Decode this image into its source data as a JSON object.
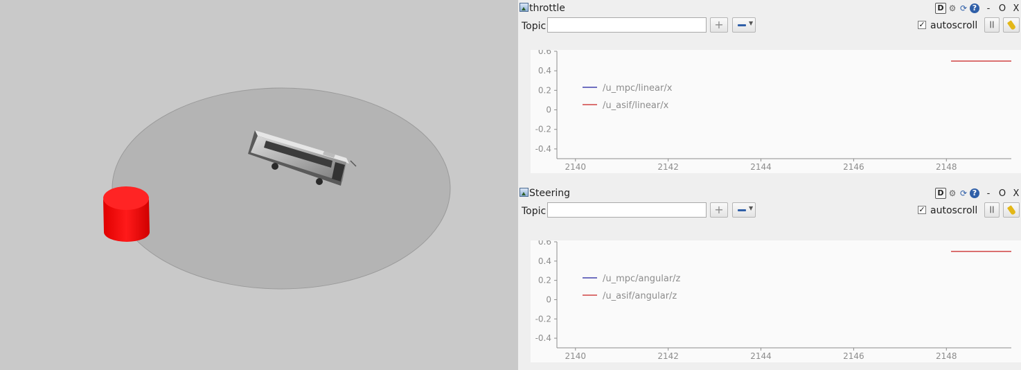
{
  "viewport": {
    "name": "gazebo-3d-view",
    "colors": {
      "background": "#c9c9c9",
      "ground": "#b4b4b4",
      "obstacle": "#ff0000",
      "obstacle_top": "#ff3a3a"
    }
  },
  "panels": [
    {
      "id": "throttle",
      "title": "throttle",
      "toolbar": {
        "d_label": "D",
        "minimize": "-",
        "float": "O",
        "close": "X"
      },
      "topic_label": "Topic",
      "topic_value": "",
      "add_label": "+",
      "autoscroll_label": "autoscroll",
      "autoscroll_checked": "✓",
      "pause_label": "||",
      "chart_data": {
        "type": "line",
        "xlim": [
          2139.6,
          2149.4
        ],
        "ylim": [
          -0.5,
          0.6
        ],
        "x_ticks": [
          2140,
          2142,
          2144,
          2146,
          2148
        ],
        "x_tick_labels": [
          "2140",
          "2142",
          "2144",
          "2146",
          "2148"
        ],
        "y_ticks": [
          0.6,
          0.4,
          0.2,
          0,
          -0.2,
          -0.4
        ],
        "y_tick_labels": [
          "0.6",
          "0.4",
          "0.2",
          "0",
          "-0.2",
          "-0.4"
        ],
        "series": [
          {
            "name": "/u_mpc/linear/x",
            "color": "#1c1c9e",
            "points": []
          },
          {
            "name": "/u_asif/linear/x",
            "color": "#c81e1e",
            "points": [
              [
                2148.1,
                0.5
              ],
              [
                2149.4,
                0.5
              ]
            ]
          }
        ],
        "legend": "top-left"
      }
    },
    {
      "id": "steering",
      "title": "Steering",
      "toolbar": {
        "d_label": "D",
        "minimize": "-",
        "float": "O",
        "close": "X"
      },
      "topic_label": "Topic",
      "topic_value": "",
      "add_label": "+",
      "autoscroll_label": "autoscroll",
      "autoscroll_checked": "✓",
      "pause_label": "||",
      "chart_data": {
        "type": "line",
        "xlim": [
          2139.6,
          2149.4
        ],
        "ylim": [
          -0.5,
          0.6
        ],
        "x_ticks": [
          2140,
          2142,
          2144,
          2146,
          2148
        ],
        "x_tick_labels": [
          "2140",
          "2142",
          "2144",
          "2146",
          "2148"
        ],
        "y_ticks": [
          0.6,
          0.4,
          0.2,
          0,
          -0.2,
          -0.4
        ],
        "y_tick_labels": [
          "0.6",
          "0.4",
          "0.2",
          "0",
          "-0.2",
          "-0.4"
        ],
        "series": [
          {
            "name": "/u_mpc/angular/z",
            "color": "#1c1c9e",
            "points": []
          },
          {
            "name": "/u_asif/angular/z",
            "color": "#c81e1e",
            "points": [
              [
                2148.1,
                0.5
              ],
              [
                2149.4,
                0.5
              ]
            ]
          }
        ],
        "legend": "top-left"
      }
    }
  ]
}
